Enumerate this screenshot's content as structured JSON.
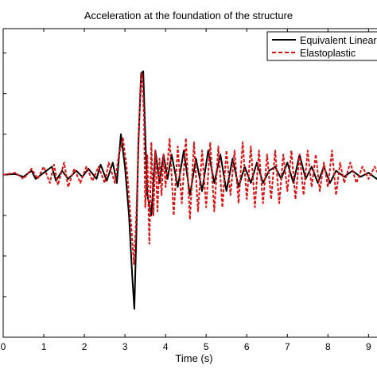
{
  "chart_data": {
    "type": "line",
    "title": "Acceleration at the foundation of the structure",
    "xlabel": "Time (s)",
    "ylabel": "",
    "xlim": [
      0,
      9.6
    ],
    "ylim": [
      -4,
      3.6
    ],
    "x_ticks": [
      0,
      1,
      2,
      3,
      4,
      5,
      6,
      7,
      8,
      9
    ],
    "x_tick_labels": [
      "0",
      "1",
      "2",
      "3",
      "4",
      "5",
      "6",
      "7",
      "8",
      "9"
    ],
    "y_ticks": [
      -3,
      -2,
      -1,
      0,
      1,
      2,
      3
    ],
    "grid": false,
    "legend_position": "top-right",
    "series": [
      {
        "name": "Equivalent Linear",
        "color": "#000000",
        "style": "solid",
        "points": [
          [
            0,
            0
          ],
          [
            0.3,
            0.02
          ],
          [
            0.5,
            -0.05
          ],
          [
            0.7,
            0.1
          ],
          [
            0.8,
            -0.1
          ],
          [
            1.0,
            0.05
          ],
          [
            1.2,
            0.2
          ],
          [
            1.3,
            -0.15
          ],
          [
            1.45,
            0.1
          ],
          [
            1.6,
            -0.1
          ],
          [
            1.8,
            0.1
          ],
          [
            1.95,
            -0.05
          ],
          [
            2.1,
            0.15
          ],
          [
            2.3,
            -0.1
          ],
          [
            2.4,
            0.25
          ],
          [
            2.55,
            -0.15
          ],
          [
            2.7,
            0.3
          ],
          [
            2.8,
            -0.2
          ],
          [
            2.9,
            1.0
          ],
          [
            3.0,
            0.2
          ],
          [
            3.1,
            -1.0
          ],
          [
            3.18,
            -2.5
          ],
          [
            3.23,
            -3.3
          ],
          [
            3.28,
            -1.5
          ],
          [
            3.33,
            0.8
          ],
          [
            3.4,
            2.5
          ],
          [
            3.45,
            2.55
          ],
          [
            3.5,
            1.0
          ],
          [
            3.55,
            -0.5
          ],
          [
            3.65,
            -1.0
          ],
          [
            3.75,
            0.6
          ],
          [
            3.85,
            -0.2
          ],
          [
            3.95,
            0.5
          ],
          [
            4.05,
            -0.1
          ],
          [
            4.15,
            0.5
          ],
          [
            4.3,
            -0.3
          ],
          [
            4.45,
            0.6
          ],
          [
            4.6,
            -0.5
          ],
          [
            4.75,
            0.4
          ],
          [
            4.9,
            -0.4
          ],
          [
            5.05,
            0.6
          ],
          [
            5.2,
            -0.2
          ],
          [
            5.35,
            0.5
          ],
          [
            5.5,
            -0.4
          ],
          [
            5.65,
            0.4
          ],
          [
            5.8,
            -0.3
          ],
          [
            5.95,
            0.2
          ],
          [
            6.1,
            -0.2
          ],
          [
            6.25,
            0.3
          ],
          [
            6.4,
            -0.2
          ],
          [
            6.55,
            0.1
          ],
          [
            6.7,
            0.2
          ],
          [
            6.85,
            -0.1
          ],
          [
            7.0,
            0.3
          ],
          [
            7.15,
            -0.2
          ],
          [
            7.3,
            0.5
          ],
          [
            7.45,
            -0.1
          ],
          [
            7.6,
            0.2
          ],
          [
            7.75,
            -0.2
          ],
          [
            7.9,
            0.2
          ],
          [
            8.05,
            -0.2
          ],
          [
            8.2,
            0.1
          ],
          [
            8.4,
            -0.05
          ],
          [
            8.6,
            0.1
          ],
          [
            8.8,
            -0.05
          ],
          [
            9.0,
            0.05
          ],
          [
            9.2,
            -0.1
          ],
          [
            9.4,
            0.15
          ],
          [
            9.6,
            0.0
          ]
        ]
      },
      {
        "name": "Elastoplastic",
        "color": "#dd1111",
        "style": "dashed",
        "points": [
          [
            0,
            0
          ],
          [
            0.3,
            0.05
          ],
          [
            0.5,
            -0.1
          ],
          [
            0.7,
            0.15
          ],
          [
            0.85,
            -0.1
          ],
          [
            1.0,
            0.2
          ],
          [
            1.15,
            -0.2
          ],
          [
            1.25,
            0.25
          ],
          [
            1.35,
            -0.25
          ],
          [
            1.5,
            0.3
          ],
          [
            1.6,
            -0.3
          ],
          [
            1.75,
            0.15
          ],
          [
            1.9,
            -0.2
          ],
          [
            2.05,
            0.2
          ],
          [
            2.2,
            -0.15
          ],
          [
            2.35,
            0.2
          ],
          [
            2.5,
            -0.2
          ],
          [
            2.6,
            0.3
          ],
          [
            2.75,
            -0.2
          ],
          [
            2.85,
            0.5
          ],
          [
            2.95,
            0.9
          ],
          [
            3.05,
            0.1
          ],
          [
            3.15,
            -1.2
          ],
          [
            3.22,
            -2.2
          ],
          [
            3.28,
            -1.0
          ],
          [
            3.33,
            0.6
          ],
          [
            3.38,
            2.2
          ],
          [
            3.42,
            2.5
          ],
          [
            3.47,
            1.4
          ],
          [
            3.5,
            -0.8
          ],
          [
            3.55,
            0.5
          ],
          [
            3.6,
            -1.7
          ],
          [
            3.65,
            0.8
          ],
          [
            3.7,
            -1.0
          ],
          [
            3.75,
            0.6
          ],
          [
            3.8,
            -0.9
          ],
          [
            3.85,
            0.4
          ],
          [
            3.9,
            -0.5
          ],
          [
            3.95,
            0.5
          ],
          [
            4.0,
            -0.3
          ],
          [
            4.1,
            0.9
          ],
          [
            4.2,
            -1.0
          ],
          [
            4.3,
            0.7
          ],
          [
            4.4,
            -0.7
          ],
          [
            4.5,
            0.9
          ],
          [
            4.6,
            -1.1
          ],
          [
            4.7,
            0.8
          ],
          [
            4.8,
            -0.9
          ],
          [
            4.9,
            0.6
          ],
          [
            5.0,
            -0.8
          ],
          [
            5.1,
            0.8
          ],
          [
            5.2,
            -0.9
          ],
          [
            5.3,
            0.7
          ],
          [
            5.4,
            -0.8
          ],
          [
            5.5,
            0.6
          ],
          [
            5.6,
            -0.5
          ],
          [
            5.7,
            0.6
          ],
          [
            5.8,
            -0.7
          ],
          [
            5.9,
            0.8
          ],
          [
            6.0,
            -0.6
          ],
          [
            6.1,
            0.7
          ],
          [
            6.2,
            -0.8
          ],
          [
            6.3,
            0.6
          ],
          [
            6.4,
            -0.7
          ],
          [
            6.5,
            0.5
          ],
          [
            6.6,
            -0.6
          ],
          [
            6.7,
            0.6
          ],
          [
            6.8,
            -0.7
          ],
          [
            6.9,
            0.5
          ],
          [
            7.0,
            -0.4
          ],
          [
            7.1,
            0.6
          ],
          [
            7.2,
            -0.6
          ],
          [
            7.3,
            0.5
          ],
          [
            7.4,
            -0.5
          ],
          [
            7.5,
            0.6
          ],
          [
            7.6,
            -0.3
          ],
          [
            7.7,
            0.5
          ],
          [
            7.8,
            -0.4
          ],
          [
            7.9,
            0.3
          ],
          [
            8.0,
            -0.3
          ],
          [
            8.1,
            0.6
          ],
          [
            8.2,
            -0.5
          ],
          [
            8.3,
            0.3
          ],
          [
            8.4,
            -0.2
          ],
          [
            8.55,
            0.3
          ],
          [
            8.7,
            -0.2
          ],
          [
            8.85,
            0.2
          ],
          [
            9.0,
            -0.1
          ],
          [
            9.15,
            0.2
          ],
          [
            9.3,
            -0.1
          ],
          [
            9.45,
            0.2
          ],
          [
            9.6,
            0.05
          ]
        ]
      }
    ]
  }
}
